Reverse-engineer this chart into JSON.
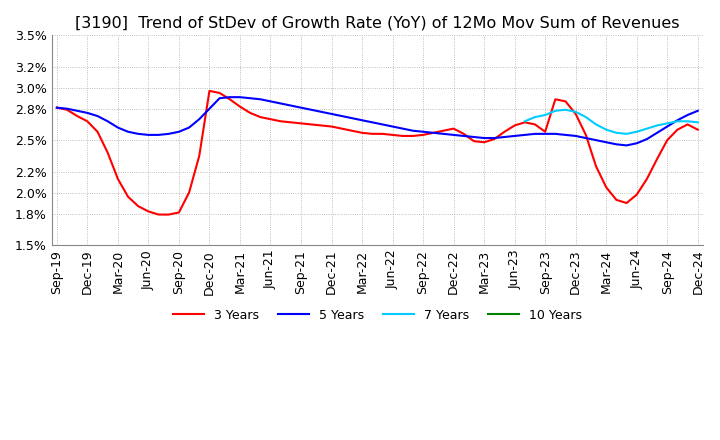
{
  "title": "[3190]  Trend of StDev of Growth Rate (YoY) of 12Mo Mov Sum of Revenues",
  "title_fontsize": 11.5,
  "ylim": [
    0.015,
    0.035
  ],
  "yticks": [
    0.035,
    0.032,
    0.03,
    0.028,
    0.025,
    0.022,
    0.02,
    0.018,
    0.015
  ],
  "ytick_labels": [
    "3.5%",
    "3.2%",
    "3.0%",
    "2.8%",
    "2.5%",
    "2.2%",
    "2.0%",
    "1.8%",
    "1.5%"
  ],
  "legend_labels": [
    "3 Years",
    "5 Years",
    "7 Years",
    "10 Years"
  ],
  "legend_colors": [
    "#ff0000",
    "#0000ff",
    "#00ccff",
    "#008000"
  ],
  "background_color": "#ffffff",
  "grid_color": "#aaaaaa",
  "line_3y": [
    0.0281,
    0.0279,
    0.0273,
    0.0268,
    0.0258,
    0.0238,
    0.0213,
    0.0196,
    0.0187,
    0.0182,
    0.0179,
    0.0179,
    0.0181,
    0.02,
    0.0235,
    0.0297,
    0.0295,
    0.0289,
    0.0282,
    0.0276,
    0.0272,
    0.027,
    0.0268,
    0.0267,
    0.0266,
    0.0265,
    0.0264,
    0.0263,
    0.0261,
    0.0259,
    0.0257,
    0.0256,
    0.0256,
    0.0255,
    0.0254,
    0.0254,
    0.0255,
    0.0257,
    0.0259,
    0.0261,
    0.0256,
    0.0249,
    0.0248,
    0.0251,
    0.0258,
    0.0264,
    0.0267,
    0.0265,
    0.0258,
    0.0289,
    0.0287,
    0.0275,
    0.0255,
    0.0225,
    0.0205,
    0.0193,
    0.019,
    0.0198,
    0.0213,
    0.0232,
    0.025,
    0.026,
    0.0265,
    0.026
  ],
  "line_5y": [
    0.0281,
    0.028,
    0.0278,
    0.0276,
    0.0273,
    0.0268,
    0.0262,
    0.0258,
    0.0256,
    0.0255,
    0.0255,
    0.0256,
    0.0258,
    0.0262,
    0.027,
    0.028,
    0.029,
    0.0291,
    0.0291,
    0.029,
    0.0289,
    0.0287,
    0.0285,
    0.0283,
    0.0281,
    0.0279,
    0.0277,
    0.0275,
    0.0273,
    0.0271,
    0.0269,
    0.0267,
    0.0265,
    0.0263,
    0.0261,
    0.0259,
    0.0258,
    0.0257,
    0.0256,
    0.0255,
    0.0254,
    0.0253,
    0.0252,
    0.0252,
    0.0253,
    0.0254,
    0.0255,
    0.0256,
    0.0256,
    0.0256,
    0.0255,
    0.0254,
    0.0252,
    0.025,
    0.0248,
    0.0246,
    0.0245,
    0.0247,
    0.0251,
    0.0257,
    0.0263,
    0.0269,
    0.0274,
    0.0278
  ],
  "line_7y": [
    null,
    null,
    null,
    null,
    null,
    null,
    null,
    null,
    null,
    null,
    null,
    null,
    null,
    null,
    null,
    null,
    null,
    null,
    null,
    null,
    null,
    null,
    null,
    null,
    null,
    null,
    null,
    null,
    null,
    null,
    null,
    null,
    null,
    null,
    null,
    null,
    null,
    null,
    null,
    null,
    null,
    null,
    null,
    null,
    null,
    null,
    0.0268,
    0.0272,
    0.0274,
    0.0278,
    0.0279,
    0.0277,
    0.0272,
    0.0265,
    0.026,
    0.0257,
    0.0256,
    0.0258,
    0.0261,
    0.0264,
    0.0266,
    0.0268,
    0.0268,
    0.0267
  ],
  "line_10y": [
    null,
    null,
    null,
    null,
    null,
    null,
    null,
    null,
    null,
    null,
    null,
    null,
    null,
    null,
    null,
    null,
    null,
    null,
    null,
    null,
    null,
    null,
    null,
    null,
    null,
    null,
    null,
    null,
    null,
    null,
    null,
    null,
    null,
    null,
    null,
    null,
    null,
    null,
    null,
    null,
    null,
    null,
    null,
    null,
    null,
    null,
    null,
    null,
    null,
    null,
    null,
    null,
    null,
    null,
    null,
    null,
    null,
    null,
    null,
    null,
    null,
    null,
    null,
    null
  ],
  "xtick_positions": [
    0,
    3,
    6,
    9,
    12,
    15,
    18,
    21,
    24,
    27,
    30,
    33,
    36,
    39,
    42,
    45,
    48,
    51,
    54,
    57,
    60,
    63
  ],
  "xtick_labels": [
    "Sep-19",
    "Dec-19",
    "Mar-20",
    "Jun-20",
    "Sep-20",
    "Dec-20",
    "Mar-21",
    "Jun-21",
    "Sep-21",
    "Dec-21",
    "Mar-22",
    "Jun-22",
    "Sep-22",
    "Dec-22",
    "Mar-23",
    "Jun-23",
    "Sep-23",
    "Dec-23",
    "Mar-24",
    "Jun-24",
    "Sep-24",
    "Dec-24"
  ]
}
